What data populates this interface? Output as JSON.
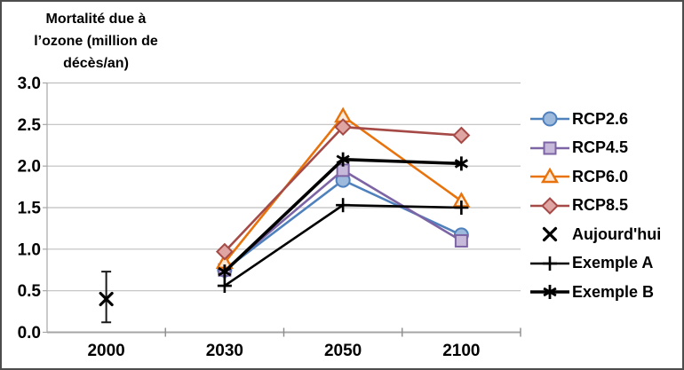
{
  "figure": {
    "background": "#ffffff",
    "border_color": "#4d4d4d"
  },
  "chart_data": {
    "type": "line",
    "title": "Mortalité due à l’ozone (million de décès/an)",
    "title_lines": [
      "Mortalité due à",
      "l’ozone (million de",
      "décès/an)"
    ],
    "ylabel": "Mortalité due à l’ozone (million de décès/an)",
    "xlabel": "",
    "categories": [
      "2000",
      "2030",
      "2050",
      "2100"
    ],
    "ylim": [
      0.0,
      3.0
    ],
    "ytick_step": 0.5,
    "ytick_labels": [
      "3.0",
      "2.5",
      "2.0",
      "1.5",
      "1.0",
      "0.5",
      "0.0"
    ],
    "grid": true,
    "legend_position": "right",
    "colors": {
      "grid": "#BFBFBF",
      "axis": "#A6A6A6",
      "tick": "#8C8C8C",
      "text": "#000000"
    },
    "series": [
      {
        "name": "RCP2.6",
        "marker": "circle",
        "line_color": "#4F81BD",
        "marker_fill": "#9DBADC",
        "line_width": 2.6,
        "values": [
          null,
          0.75,
          1.83,
          1.17
        ]
      },
      {
        "name": "RCP4.5",
        "marker": "square",
        "line_color": "#7C64A5",
        "marker_fill": "#C6B9D9",
        "line_width": 2.6,
        "values": [
          null,
          0.75,
          1.95,
          1.1
        ]
      },
      {
        "name": "RCP6.0",
        "marker": "triangle",
        "line_color": "#E8730C",
        "marker_fill": "#FCEADB",
        "line_width": 2.6,
        "values": [
          null,
          0.84,
          2.6,
          1.58
        ]
      },
      {
        "name": "RCP8.5",
        "marker": "diamond",
        "line_color": "#A54A46",
        "marker_fill": "#DFA5A3",
        "line_width": 2.6,
        "values": [
          null,
          0.97,
          2.47,
          2.37
        ]
      },
      {
        "name": "Aujourd'hui",
        "marker": "x",
        "line_color": "#000000",
        "show_line": false,
        "values": [
          0.4,
          null,
          null,
          null
        ],
        "error_bar": {
          "category": "2000",
          "center": 0.4,
          "low": 0.12,
          "high": 0.73
        }
      },
      {
        "name": "Exemple A",
        "marker": "plus",
        "line_color": "#000000",
        "line_width": 2.6,
        "values": [
          null,
          0.56,
          1.53,
          1.5
        ]
      },
      {
        "name": "Exemple B",
        "marker": "asterisk",
        "line_color": "#000000",
        "line_width": 3.6,
        "values": [
          null,
          0.73,
          2.08,
          2.03
        ]
      }
    ]
  }
}
